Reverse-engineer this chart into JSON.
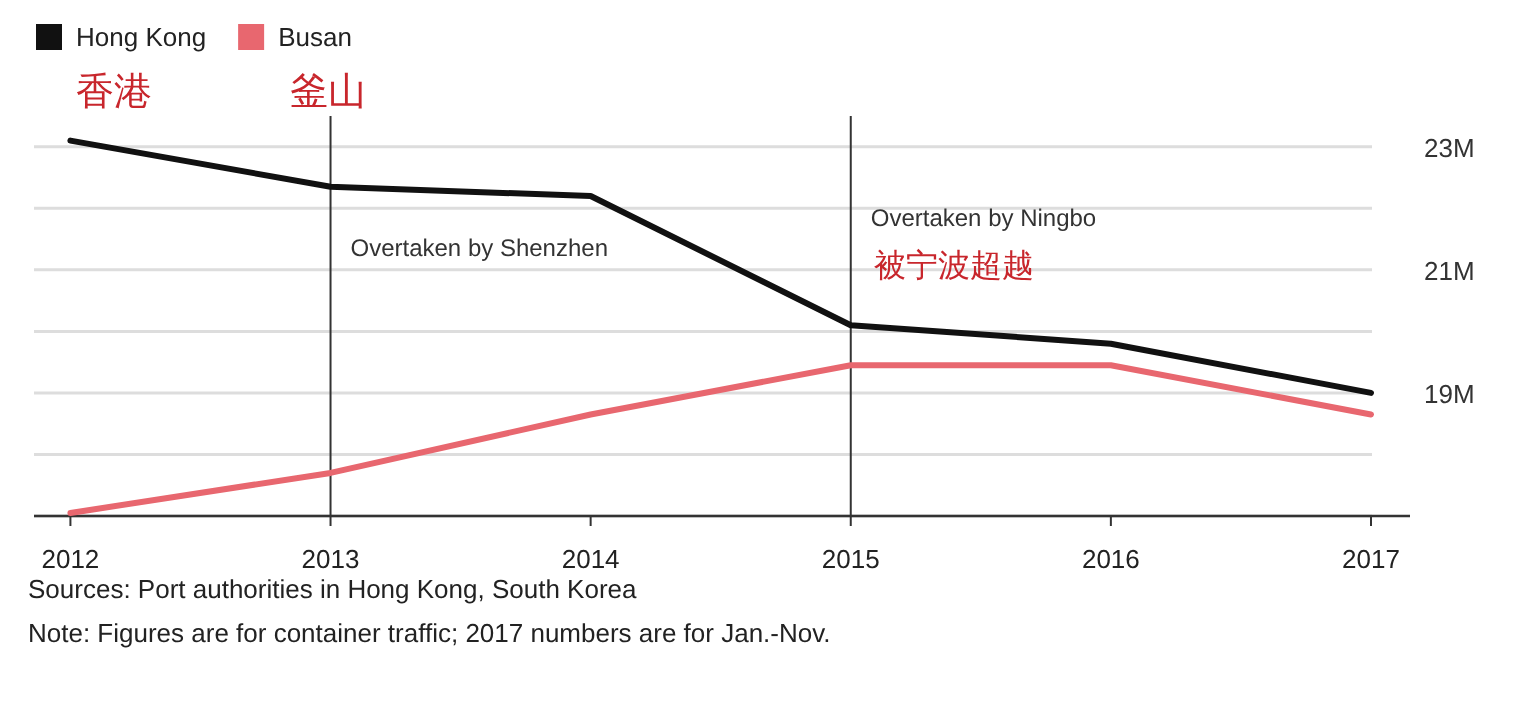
{
  "chart_data": {
    "type": "line",
    "x": [
      2012,
      2013,
      2014,
      2015,
      2016,
      2017
    ],
    "series": [
      {
        "name": "Hong Kong",
        "color": "#111111",
        "values": [
          23.1,
          22.35,
          22.2,
          20.1,
          19.8,
          19.0
        ]
      },
      {
        "name": "Busan",
        "color": "#e8676f",
        "values": [
          17.05,
          17.7,
          18.65,
          19.45,
          19.45,
          18.65
        ]
      }
    ],
    "xlim": [
      2011.86,
      2017.15
    ],
    "xticks": [
      2012,
      2013,
      2014,
      2015,
      2016,
      2017
    ],
    "ylim": [
      17,
      23.5
    ],
    "yticks": [
      {
        "value": 17,
        "label": null
      },
      {
        "value": 18,
        "label": null
      },
      {
        "value": 19,
        "label": "19M"
      },
      {
        "value": 20,
        "label": null
      },
      {
        "value": 21,
        "label": "21M"
      },
      {
        "value": 22,
        "label": null
      },
      {
        "value": 23,
        "label": "23M"
      }
    ],
    "grid": "y",
    "legend": "top left",
    "marker": "none",
    "line_style": "solid",
    "ref_lines": [
      {
        "axis": "x",
        "value": 2013,
        "label": "Overtaken by Shenzhen",
        "color": "#333333"
      },
      {
        "axis": "x",
        "value": 2015,
        "label": "Overtaken by Ningbo",
        "color": "#333333"
      }
    ],
    "annotations": [
      "香港",
      "釜山",
      "被宁波超越",
      "Sources: Port authorities in Hong Kong, South Korea",
      "Note: Figures are for container traffic; 2017 numbers are for Jan.-Nov."
    ]
  }
}
